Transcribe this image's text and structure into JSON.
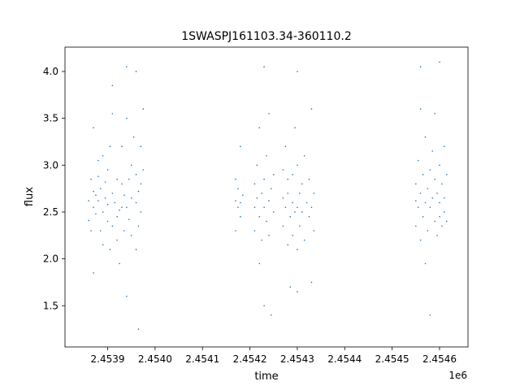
{
  "chart_data": {
    "type": "scatter",
    "title": "1SWASPJ161103.34-360110.2",
    "xlabel": "time",
    "ylabel": "flux",
    "x_offset_label": "1e6",
    "xlim": [
      2.45381,
      2.45466
    ],
    "ylim": [
      1.06,
      4.26
    ],
    "x_ticks": [
      2.4539,
      2.454,
      2.4541,
      2.4542,
      2.4543,
      2.4544,
      2.4545,
      2.4546
    ],
    "x_tick_labels": [
      "2.4539",
      "2.4540",
      "2.4541",
      "2.4542",
      "2.4543",
      "2.4544",
      "2.4545",
      "2.4546"
    ],
    "y_ticks": [
      1.5,
      2.0,
      2.5,
      3.0,
      3.5,
      4.0
    ],
    "y_tick_labels": [
      "1.5",
      "2.0",
      "2.5",
      "3.0",
      "3.5",
      "4.0"
    ],
    "grid": false,
    "legend": "none",
    "marker_color": "#1f77b4",
    "series": [
      {
        "points": [
          [
            2.45386,
            2.62
          ],
          [
            2.45386,
            2.41
          ],
          [
            2.453865,
            2.85
          ],
          [
            2.453865,
            2.3
          ],
          [
            2.45387,
            2.55
          ],
          [
            2.45387,
            2.72
          ],
          [
            2.45387,
            1.85
          ],
          [
            2.45387,
            3.4
          ],
          [
            2.453875,
            2.68
          ],
          [
            2.453875,
            2.48
          ],
          [
            2.45388,
            3.05
          ],
          [
            2.45388,
            2.88
          ],
          [
            2.45388,
            2.62
          ],
          [
            2.453885,
            2.3
          ],
          [
            2.453885,
            2.75
          ],
          [
            2.45389,
            2.5
          ],
          [
            2.45389,
            2.15
          ],
          [
            2.45389,
            3.1
          ],
          [
            2.453895,
            2.65
          ],
          [
            2.453895,
            2.82
          ],
          [
            2.4539,
            2.4
          ],
          [
            2.4539,
            2.95
          ],
          [
            2.4539,
            2.58
          ],
          [
            2.453905,
            2.1
          ],
          [
            2.453905,
            3.2
          ],
          [
            2.45391,
            2.7
          ],
          [
            2.45391,
            2.35
          ],
          [
            2.45391,
            3.85
          ],
          [
            2.45391,
            3.55
          ],
          [
            2.453915,
            2.6
          ],
          [
            2.45392,
            2.45
          ],
          [
            2.45392,
            2.2
          ],
          [
            2.45392,
            2.85
          ],
          [
            2.453925,
            2.52
          ],
          [
            2.453925,
            1.95
          ],
          [
            2.45393,
            2.8
          ],
          [
            2.45393,
            2.55
          ],
          [
            2.45393,
            3.2
          ],
          [
            2.453935,
            2.3
          ],
          [
            2.453935,
            2.68
          ],
          [
            2.45394,
            2.55
          ],
          [
            2.45394,
            1.6
          ],
          [
            2.45394,
            4.05
          ],
          [
            2.45394,
            3.5
          ],
          [
            2.453945,
            2.85
          ],
          [
            2.453945,
            2.42
          ],
          [
            2.45395,
            2.65
          ],
          [
            2.45395,
            2.25
          ],
          [
            2.45395,
            3.0
          ],
          [
            2.453955,
            3.3
          ],
          [
            2.45396,
            2.6
          ],
          [
            2.45396,
            2.1
          ],
          [
            2.45396,
            2.9
          ],
          [
            2.45396,
            4.0
          ],
          [
            2.453965,
            2.72
          ],
          [
            2.453965,
            2.35
          ],
          [
            2.453965,
            1.25
          ],
          [
            2.45397,
            2.8
          ],
          [
            2.45397,
            3.2
          ],
          [
            2.45397,
            2.5
          ],
          [
            2.453975,
            2.95
          ],
          [
            2.453975,
            3.6
          ],
          [
            2.45417,
            2.62
          ],
          [
            2.45417,
            2.85
          ],
          [
            2.45417,
            2.3
          ],
          [
            2.454175,
            2.55
          ],
          [
            2.454175,
            2.75
          ],
          [
            2.45418,
            2.6
          ],
          [
            2.45418,
            3.2
          ],
          [
            2.45418,
            2.45
          ],
          [
            2.454185,
            2.68
          ],
          [
            2.45421,
            2.55
          ],
          [
            2.45421,
            2.8
          ],
          [
            2.45421,
            2.3
          ],
          [
            2.454215,
            2.65
          ],
          [
            2.454215,
            3.0
          ],
          [
            2.45422,
            2.45
          ],
          [
            2.45422,
            1.95
          ],
          [
            2.45422,
            3.4
          ],
          [
            2.454225,
            2.7
          ],
          [
            2.454225,
            2.2
          ],
          [
            2.45423,
            2.55
          ],
          [
            2.45423,
            2.85
          ],
          [
            2.45423,
            1.5
          ],
          [
            2.45423,
            4.05
          ],
          [
            2.454235,
            2.4
          ],
          [
            2.454235,
            3.1
          ],
          [
            2.45424,
            2.62
          ],
          [
            2.45424,
            2.25
          ],
          [
            2.45424,
            3.55
          ],
          [
            2.454245,
            2.75
          ],
          [
            2.454245,
            1.4
          ],
          [
            2.45425,
            2.5
          ],
          [
            2.45425,
            2.9
          ],
          [
            2.45427,
            2.65
          ],
          [
            2.45427,
            2.35
          ],
          [
            2.45427,
            2.95
          ],
          [
            2.454275,
            2.55
          ],
          [
            2.454275,
            3.2
          ],
          [
            2.45428,
            2.7
          ],
          [
            2.45428,
            2.15
          ],
          [
            2.45428,
            2.85
          ],
          [
            2.454285,
            2.45
          ],
          [
            2.454285,
            1.7
          ],
          [
            2.45429,
            2.6
          ],
          [
            2.45429,
            2.9
          ],
          [
            2.45429,
            2.25
          ],
          [
            2.454295,
            3.4
          ],
          [
            2.454295,
            2.5
          ],
          [
            2.4543,
            2.55
          ],
          [
            2.4543,
            2.1
          ],
          [
            2.4543,
            3.0
          ],
          [
            2.4543,
            1.65
          ],
          [
            2.4543,
            4.0
          ],
          [
            2.454305,
            2.7
          ],
          [
            2.454305,
            2.35
          ],
          [
            2.45431,
            2.8
          ],
          [
            2.45431,
            2.5
          ],
          [
            2.454315,
            3.1
          ],
          [
            2.454315,
            2.2
          ],
          [
            2.45432,
            2.6
          ],
          [
            2.454325,
            2.45
          ],
          [
            2.454325,
            2.85
          ],
          [
            2.45433,
            3.6
          ],
          [
            2.45433,
            2.55
          ],
          [
            2.45433,
            1.75
          ],
          [
            2.454335,
            2.7
          ],
          [
            2.454335,
            2.3
          ],
          [
            2.45455,
            2.62
          ],
          [
            2.45455,
            2.35
          ],
          [
            2.45455,
            2.8
          ],
          [
            2.454555,
            2.55
          ],
          [
            2.454555,
            3.05
          ],
          [
            2.45456,
            2.7
          ],
          [
            2.45456,
            2.2
          ],
          [
            2.45456,
            3.6
          ],
          [
            2.45456,
            4.05
          ],
          [
            2.454565,
            2.45
          ],
          [
            2.454565,
            2.9
          ],
          [
            2.45457,
            2.6
          ],
          [
            2.45457,
            1.95
          ],
          [
            2.45457,
            3.3
          ],
          [
            2.454575,
            2.75
          ],
          [
            2.454575,
            2.3
          ],
          [
            2.45458,
            2.55
          ],
          [
            2.45458,
            2.95
          ],
          [
            2.45458,
            1.4
          ],
          [
            2.454585,
            2.65
          ],
          [
            2.454585,
            3.15
          ],
          [
            2.45459,
            2.4
          ],
          [
            2.45459,
            2.85
          ],
          [
            2.45459,
            3.55
          ],
          [
            2.454595,
            2.7
          ],
          [
            2.454595,
            2.25
          ],
          [
            2.4546,
            2.6
          ],
          [
            2.4546,
            3.0
          ],
          [
            2.4546,
            2.45
          ],
          [
            2.4546,
            4.1
          ],
          [
            2.454605,
            2.8
          ],
          [
            2.454605,
            2.35
          ],
          [
            2.45461,
            2.65
          ],
          [
            2.45461,
            3.2
          ],
          [
            2.45461,
            2.5
          ],
          [
            2.454615,
            2.9
          ],
          [
            2.454615,
            2.4
          ]
        ]
      }
    ]
  }
}
